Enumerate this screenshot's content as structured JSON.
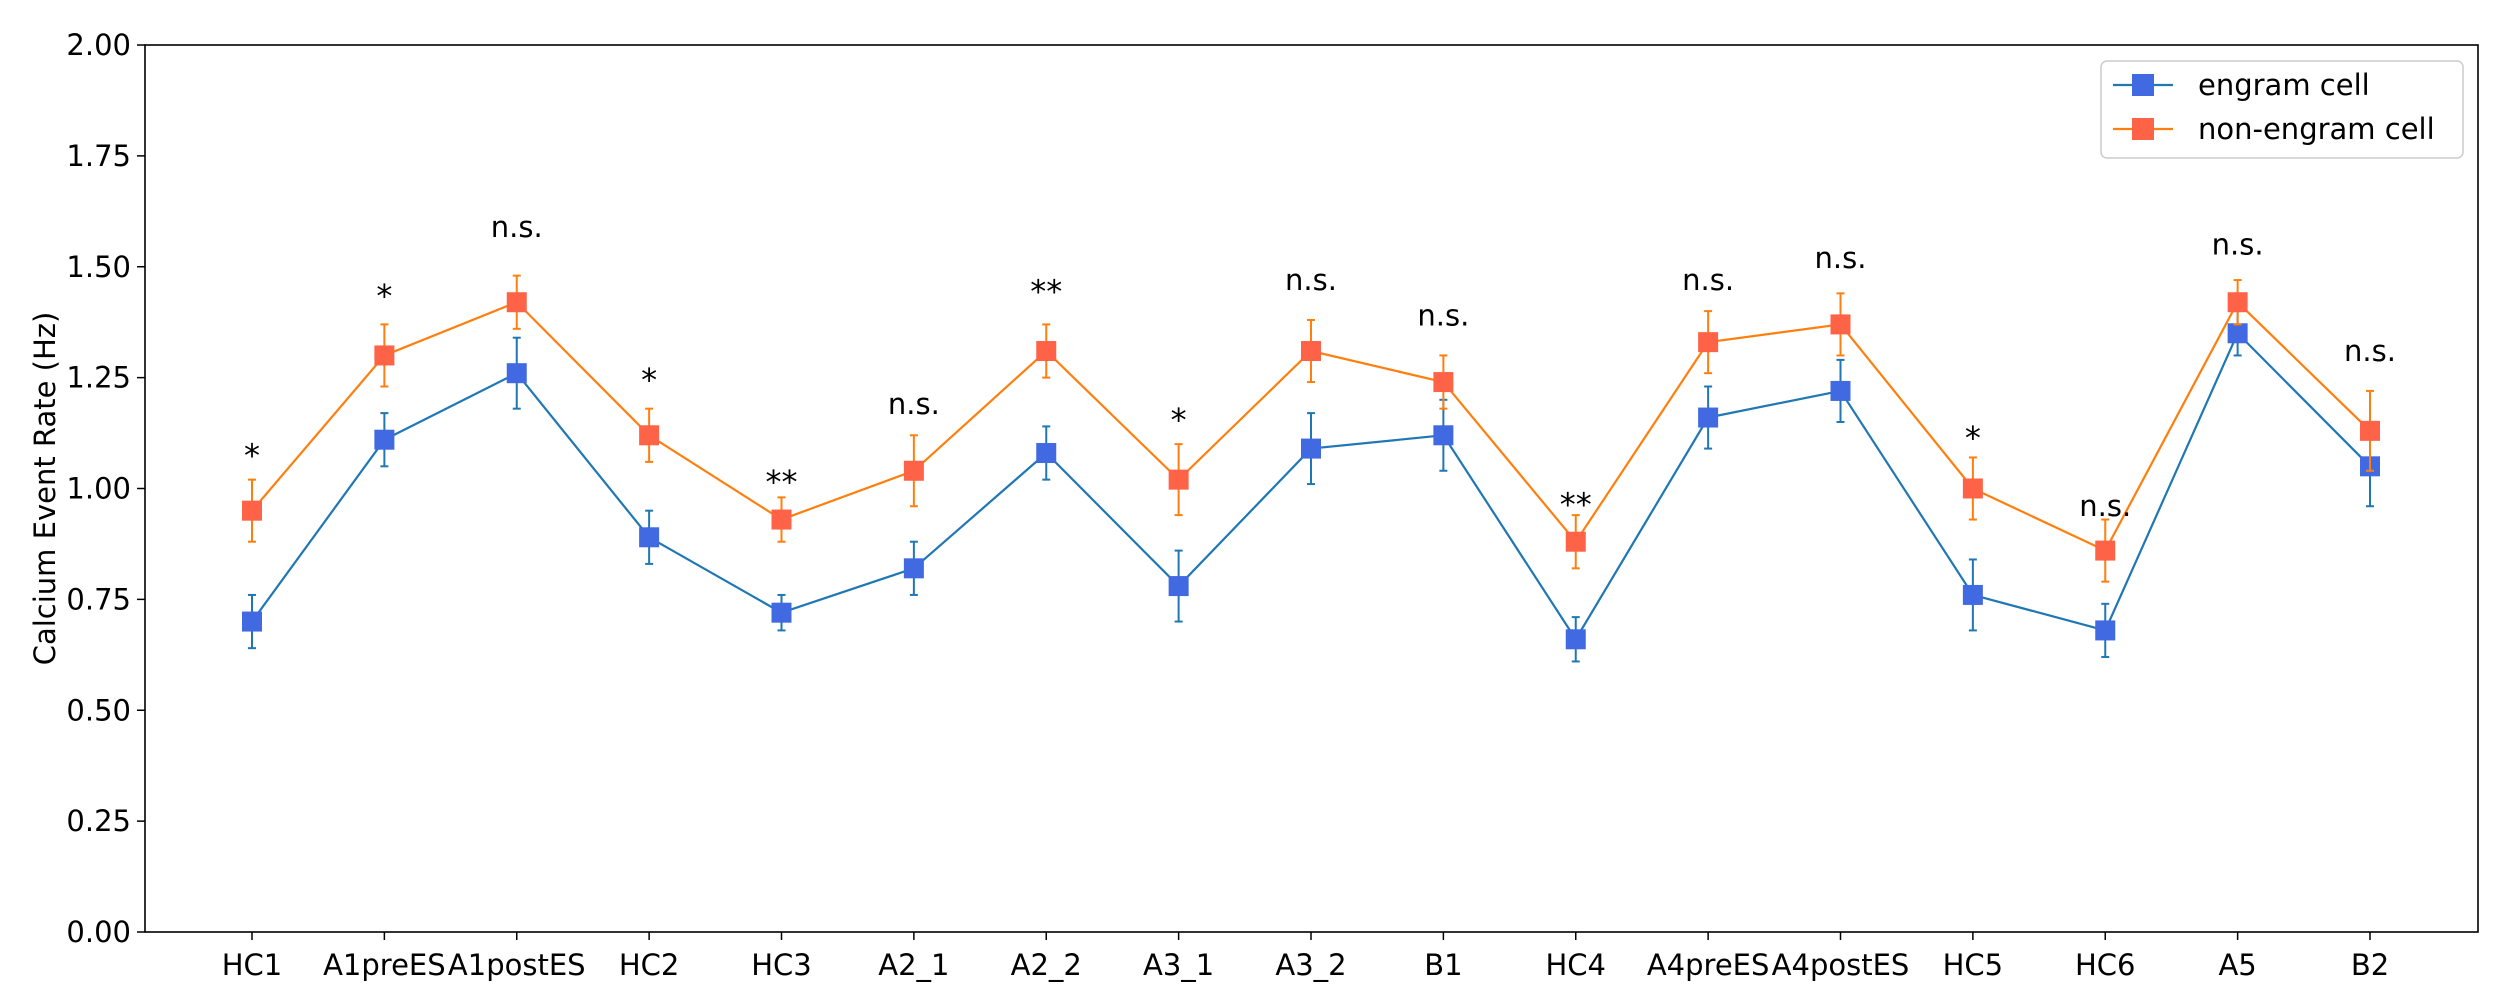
{
  "chart_data": {
    "type": "line",
    "title": "",
    "xlabel": "",
    "ylabel": "Calcium Event Rate (Hz)",
    "ylim": [
      0,
      2.0
    ],
    "yticks": [
      0.0,
      0.25,
      0.5,
      0.75,
      1.0,
      1.25,
      1.5,
      1.75,
      2.0
    ],
    "ytick_labels": [
      "0.00",
      "0.25",
      "0.50",
      "0.75",
      "1.00",
      "1.25",
      "1.50",
      "1.75",
      "2.00"
    ],
    "categories": [
      "HC1",
      "A1preES",
      "A1postES",
      "HC2",
      "HC3",
      "A2_1",
      "A2_2",
      "A3_1",
      "A3_2",
      "B1",
      "HC4",
      "A4preES",
      "A4postES",
      "HC5",
      "HC6",
      "A5",
      "B2"
    ],
    "grid": false,
    "legend_position": "top-right",
    "series": [
      {
        "name": "engram cell",
        "line_color": "#1f77b4",
        "marker_color": "#4169e1",
        "values": [
          0.7,
          1.11,
          1.26,
          0.89,
          0.72,
          0.82,
          1.08,
          0.78,
          1.09,
          1.12,
          0.66,
          1.16,
          1.22,
          0.76,
          0.68,
          1.35,
          1.05
        ],
        "errors": [
          0.06,
          0.06,
          0.08,
          0.06,
          0.04,
          0.06,
          0.06,
          0.08,
          0.08,
          0.08,
          0.05,
          0.07,
          0.07,
          0.08,
          0.06,
          0.05,
          0.09
        ]
      },
      {
        "name": "non-engram cell",
        "line_color": "#ff7f0e",
        "marker_color": "#ff6347",
        "values": [
          0.95,
          1.3,
          1.42,
          1.12,
          0.93,
          1.04,
          1.31,
          1.02,
          1.31,
          1.24,
          0.88,
          1.33,
          1.37,
          1.0,
          0.86,
          1.42,
          1.13
        ],
        "errors": [
          0.07,
          0.07,
          0.06,
          0.06,
          0.05,
          0.08,
          0.06,
          0.08,
          0.07,
          0.06,
          0.06,
          0.07,
          0.07,
          0.07,
          0.07,
          0.05,
          0.09
        ]
      }
    ],
    "annotations": [
      {
        "category": "HC1",
        "text": "*",
        "y": 1.09
      },
      {
        "category": "A1preES",
        "text": "*",
        "y": 1.45
      },
      {
        "category": "A1postES",
        "text": "n.s.",
        "y": 1.59
      },
      {
        "category": "HC2",
        "text": "*",
        "y": 1.26
      },
      {
        "category": "HC3",
        "text": "**",
        "y": 1.03
      },
      {
        "category": "A2_1",
        "text": "n.s.",
        "y": 1.19
      },
      {
        "category": "A2_2",
        "text": "**",
        "y": 1.46
      },
      {
        "category": "A3_1",
        "text": "*",
        "y": 1.17
      },
      {
        "category": "A3_2",
        "text": "n.s.",
        "y": 1.47
      },
      {
        "category": "B1",
        "text": "n.s.",
        "y": 1.39
      },
      {
        "category": "HC4",
        "text": "**",
        "y": 0.98
      },
      {
        "category": "A4preES",
        "text": "n.s.",
        "y": 1.47
      },
      {
        "category": "A4postES",
        "text": "n.s.",
        "y": 1.52
      },
      {
        "category": "HC5",
        "text": "*",
        "y": 1.13
      },
      {
        "category": "HC6",
        "text": "n.s.",
        "y": 0.96
      },
      {
        "category": "A5",
        "text": "n.s.",
        "y": 1.55
      },
      {
        "category": "B2",
        "text": "n.s.",
        "y": 1.31
      }
    ]
  }
}
